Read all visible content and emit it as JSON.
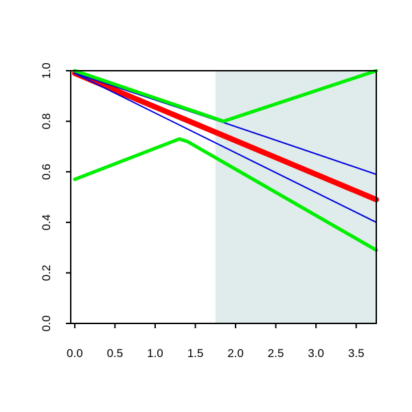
{
  "chart_data": {
    "type": "line",
    "title": "",
    "xlabel": "",
    "ylabel": "",
    "xlim": [
      -0.05,
      3.75
    ],
    "ylim": [
      0,
      1
    ],
    "x_ticks": [
      0.0,
      0.5,
      1.0,
      1.5,
      2.0,
      2.5,
      3.0,
      3.5
    ],
    "x_tick_labels": [
      "0.0",
      "0.5",
      "1.0",
      "1.5",
      "2.0",
      "2.5",
      "3.0",
      "3.5"
    ],
    "y_ticks": [
      0.0,
      0.2,
      0.4,
      0.6,
      0.8,
      1.0
    ],
    "y_tick_labels": [
      "0.0",
      "0.2",
      "0.4",
      "0.6",
      "0.8",
      "1.0"
    ],
    "grid": false,
    "legend": "none",
    "shaded_region": {
      "x_from": 1.75,
      "x_to": 3.75,
      "color": "#dfeceb"
    },
    "series": [
      {
        "color": "#ff0000",
        "line_weight": "thick",
        "x": [
          0.0,
          3.75
        ],
        "y": [
          0.99,
          0.49
        ]
      },
      {
        "color": "#0000dd",
        "line_weight": "thin",
        "x": [
          0.0,
          3.75
        ],
        "y": [
          0.99,
          0.4
        ]
      },
      {
        "color": "#0000dd",
        "line_weight": "thin",
        "x": [
          0.0,
          1.85,
          3.75
        ],
        "y": [
          0.99,
          0.795,
          0.59
        ]
      },
      {
        "color": "#00ee00",
        "line_weight": "medium",
        "x": [
          0.0,
          1.85,
          3.75
        ],
        "y": [
          1.0,
          0.8,
          1.0
        ]
      },
      {
        "color": "#00ee00",
        "line_weight": "medium",
        "x": [
          0.0,
          1.3,
          1.4,
          3.75
        ],
        "y": [
          0.57,
          0.73,
          0.72,
          0.29
        ]
      }
    ]
  }
}
